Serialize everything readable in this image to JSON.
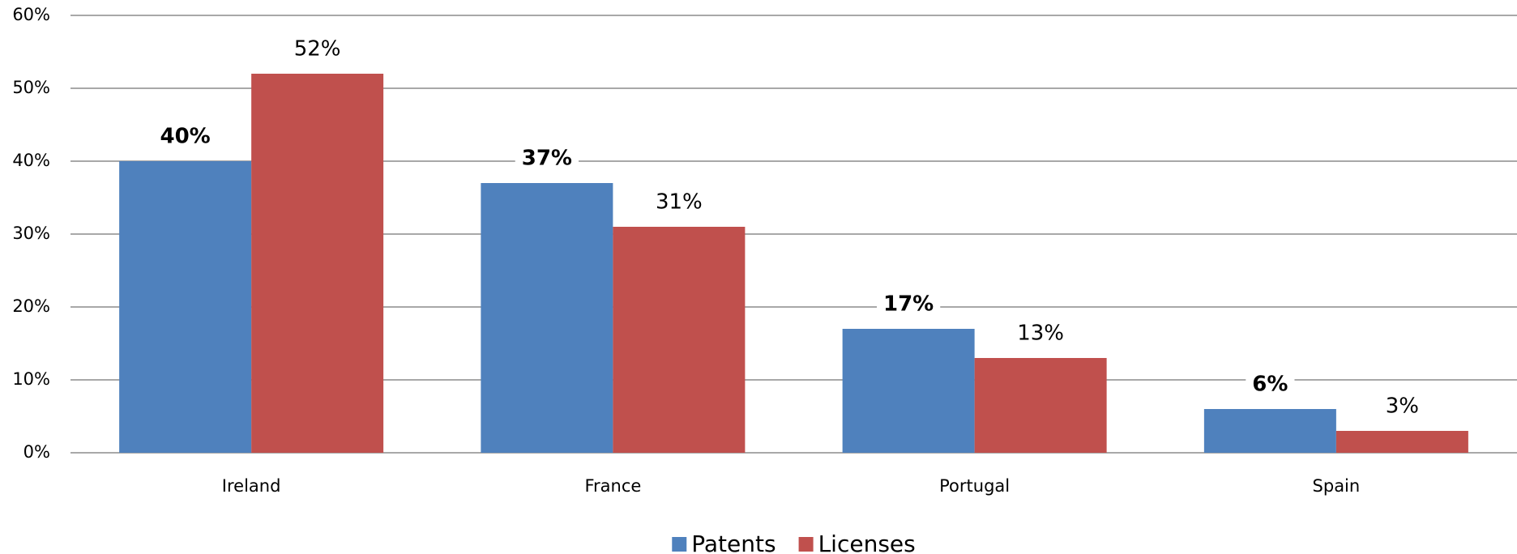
{
  "chart_data": {
    "type": "bar",
    "categories": [
      "Ireland",
      "France",
      "Portugal",
      "Spain"
    ],
    "series": [
      {
        "name": "Patents",
        "color": "#4f81bd",
        "values": [
          40,
          37,
          17,
          6
        ],
        "value_labels": [
          "40%",
          "37%",
          "17%",
          "6%"
        ],
        "value_label_weight": "bold"
      },
      {
        "name": "Licenses",
        "color": "#c0504d",
        "values": [
          52,
          31,
          13,
          3
        ],
        "value_labels": [
          "52%",
          "31%",
          "13%",
          "3%"
        ],
        "value_label_weight": "normal"
      }
    ],
    "ylim": [
      0,
      60
    ],
    "yticks": [
      {
        "value": 0,
        "label": "0%"
      },
      {
        "value": 10,
        "label": "10%"
      },
      {
        "value": 20,
        "label": "20%"
      },
      {
        "value": 30,
        "label": "30%"
      },
      {
        "value": 40,
        "label": "40%"
      },
      {
        "value": 50,
        "label": "50%"
      },
      {
        "value": 60,
        "label": "60%"
      }
    ],
    "grid": true,
    "legend": "bottom"
  }
}
